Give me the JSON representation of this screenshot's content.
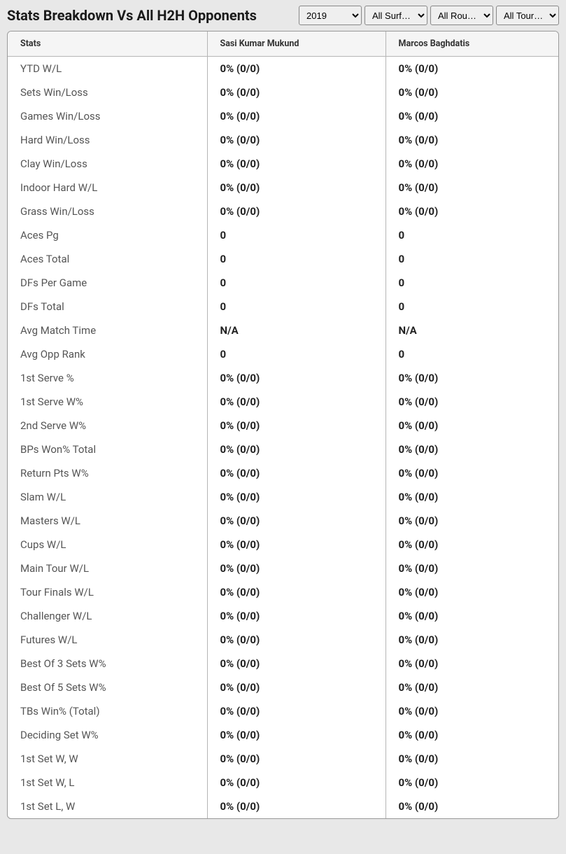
{
  "title": "Stats Breakdown Vs All H2H Opponents",
  "filters": {
    "year": {
      "selected": "2019",
      "options": [
        "2019"
      ]
    },
    "surface": {
      "selected": "All Surf…",
      "options": [
        "All Surf…"
      ]
    },
    "round": {
      "selected": "All Rou…",
      "options": [
        "All Rou…"
      ]
    },
    "tour": {
      "selected": "All Tour…",
      "options": [
        "All Tour…"
      ]
    }
  },
  "columns": {
    "stats": "Stats",
    "p1": "Sasi Kumar Mukund",
    "p2": "Marcos Baghdatis"
  },
  "rows": [
    {
      "label": "YTD W/L",
      "p1": "0% (0/0)",
      "p2": "0% (0/0)"
    },
    {
      "label": "Sets Win/Loss",
      "p1": "0% (0/0)",
      "p2": "0% (0/0)"
    },
    {
      "label": "Games Win/Loss",
      "p1": "0% (0/0)",
      "p2": "0% (0/0)"
    },
    {
      "label": "Hard Win/Loss",
      "p1": "0% (0/0)",
      "p2": "0% (0/0)"
    },
    {
      "label": "Clay Win/Loss",
      "p1": "0% (0/0)",
      "p2": "0% (0/0)"
    },
    {
      "label": "Indoor Hard W/L",
      "p1": "0% (0/0)",
      "p2": "0% (0/0)"
    },
    {
      "label": "Grass Win/Loss",
      "p1": "0% (0/0)",
      "p2": "0% (0/0)"
    },
    {
      "label": "Aces Pg",
      "p1": "0",
      "p2": "0"
    },
    {
      "label": "Aces Total",
      "p1": "0",
      "p2": "0"
    },
    {
      "label": "DFs Per Game",
      "p1": "0",
      "p2": "0"
    },
    {
      "label": "DFs Total",
      "p1": "0",
      "p2": "0"
    },
    {
      "label": "Avg Match Time",
      "p1": "N/A",
      "p2": "N/A"
    },
    {
      "label": "Avg Opp Rank",
      "p1": "0",
      "p2": "0"
    },
    {
      "label": "1st Serve %",
      "p1": "0% (0/0)",
      "p2": "0% (0/0)"
    },
    {
      "label": "1st Serve W%",
      "p1": "0% (0/0)",
      "p2": "0% (0/0)"
    },
    {
      "label": "2nd Serve W%",
      "p1": "0% (0/0)",
      "p2": "0% (0/0)"
    },
    {
      "label": "BPs Won% Total",
      "p1": "0% (0/0)",
      "p2": "0% (0/0)"
    },
    {
      "label": "Return Pts W%",
      "p1": "0% (0/0)",
      "p2": "0% (0/0)"
    },
    {
      "label": "Slam W/L",
      "p1": "0% (0/0)",
      "p2": "0% (0/0)"
    },
    {
      "label": "Masters W/L",
      "p1": "0% (0/0)",
      "p2": "0% (0/0)"
    },
    {
      "label": "Cups W/L",
      "p1": "0% (0/0)",
      "p2": "0% (0/0)"
    },
    {
      "label": "Main Tour W/L",
      "p1": "0% (0/0)",
      "p2": "0% (0/0)"
    },
    {
      "label": "Tour Finals W/L",
      "p1": "0% (0/0)",
      "p2": "0% (0/0)"
    },
    {
      "label": "Challenger W/L",
      "p1": "0% (0/0)",
      "p2": "0% (0/0)"
    },
    {
      "label": "Futures W/L",
      "p1": "0% (0/0)",
      "p2": "0% (0/0)"
    },
    {
      "label": "Best Of 3 Sets W%",
      "p1": "0% (0/0)",
      "p2": "0% (0/0)"
    },
    {
      "label": "Best Of 5 Sets W%",
      "p1": "0% (0/0)",
      "p2": "0% (0/0)"
    },
    {
      "label": "TBs Win% (Total)",
      "p1": "0% (0/0)",
      "p2": "0% (0/0)"
    },
    {
      "label": "Deciding Set W%",
      "p1": "0% (0/0)",
      "p2": "0% (0/0)"
    },
    {
      "label": "1st Set W, W",
      "p1": "0% (0/0)",
      "p2": "0% (0/0)"
    },
    {
      "label": "1st Set W, L",
      "p1": "0% (0/0)",
      "p2": "0% (0/0)"
    },
    {
      "label": "1st Set L, W",
      "p1": "0% (0/0)",
      "p2": "0% (0/0)"
    }
  ],
  "style": {
    "page_bg": "#e8e8e8",
    "table_bg": "#ffffff",
    "header_bg": "#f5f5f5",
    "border_color": "#b5b5b5",
    "title_color": "#1a1a1a",
    "label_color": "#555555",
    "value_color": "#222222"
  }
}
